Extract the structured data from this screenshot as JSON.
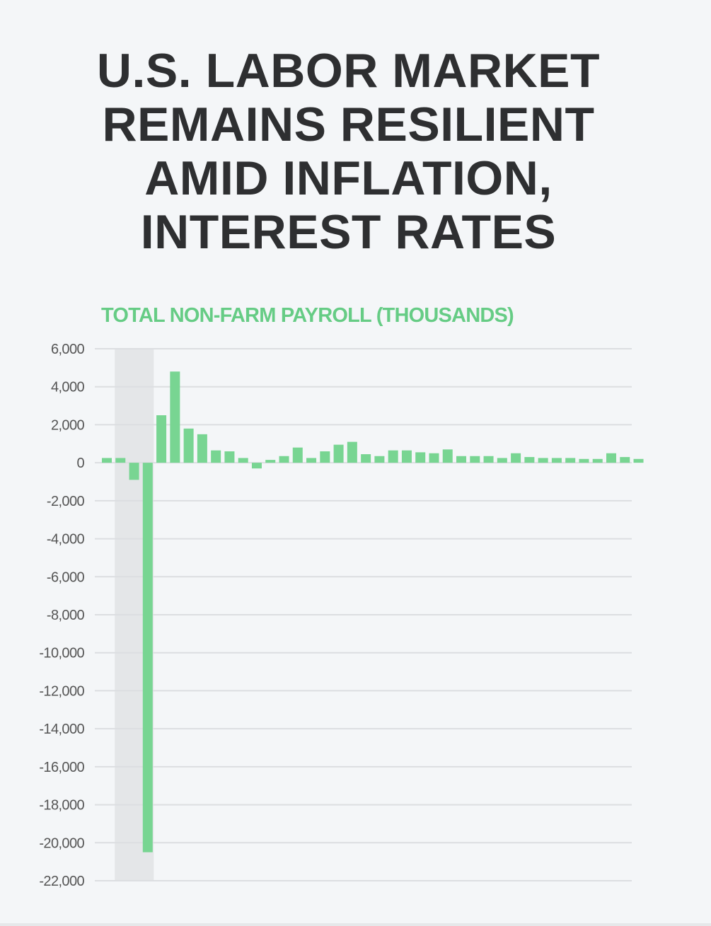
{
  "title_lines": [
    "U.S. LABOR MARKET",
    "REMAINS RESILIENT",
    "AMID INFLATION,",
    "INTEREST RATES"
  ],
  "colors": {
    "title": "#2e2f31",
    "accent": "#66cc85",
    "bar": "#78d592",
    "grid": "#dcdee1",
    "shade": "#e4e6e8",
    "tick_label": "#555555",
    "background": "#f4f6f8"
  },
  "chart_data": {
    "type": "bar",
    "title": "TOTAL NON-FARM PAYROLL (THOUSANDS)",
    "xlabel": "",
    "ylabel": "",
    "ylim": [
      -22000,
      6000
    ],
    "yticks": [
      6000,
      4000,
      2000,
      0,
      -2000,
      -4000,
      -6000,
      -8000,
      -10000,
      -12000,
      -14000,
      -16000,
      -18000,
      -20000,
      -22000
    ],
    "ytick_labels": [
      "6,000",
      "4,000",
      "2,000",
      "0",
      "-2,000",
      "-4,000",
      "-6,000",
      "-8,000",
      "-10,000",
      "-12,000",
      "-14,000",
      "-16,000",
      "-18,000",
      "-20,000",
      "-22,000"
    ],
    "grid": true,
    "legend": "none",
    "shaded_region": {
      "from_bar": 1,
      "to_bar": 3,
      "note_visible": false
    },
    "values": [
      250,
      250,
      -900,
      -20500,
      2500,
      4800,
      1800,
      1500,
      650,
      600,
      250,
      -300,
      150,
      350,
      800,
      250,
      600,
      950,
      1100,
      450,
      350,
      650,
      650,
      550,
      500,
      700,
      350,
      350,
      350,
      250,
      500,
      300,
      250,
      250,
      250,
      200,
      200,
      500,
      300,
      200
    ]
  }
}
